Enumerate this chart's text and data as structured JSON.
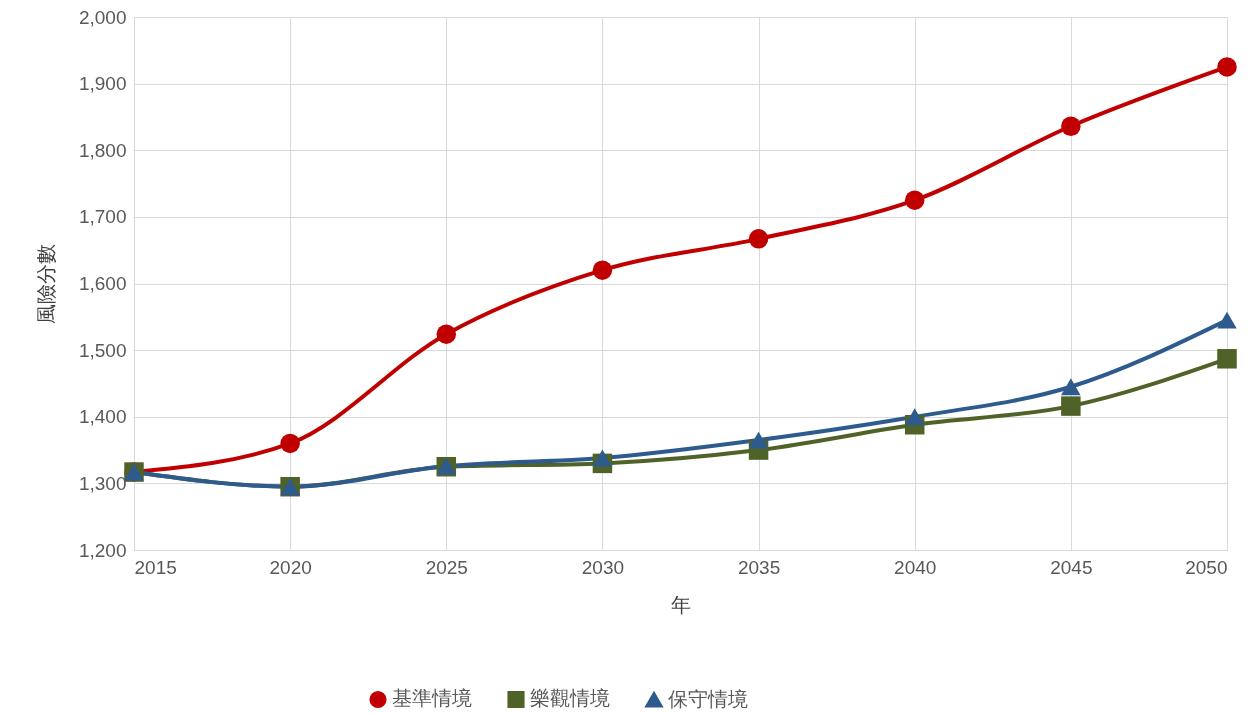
{
  "chart_data": {
    "type": "line",
    "xlabel": "年",
    "ylabel": "風險分數",
    "x": [
      2015,
      2020,
      2025,
      2030,
      2035,
      2040,
      2045,
      2050
    ],
    "series": [
      {
        "name": "基準情境",
        "color": "#c00000",
        "marker": "circle",
        "values": [
          1317,
          1360,
          1524,
          1620,
          1667,
          1725,
          1836,
          1925
        ]
      },
      {
        "name": "樂觀情境",
        "color": "#4f6228",
        "marker": "square",
        "values": [
          1317,
          1295,
          1325,
          1330,
          1350,
          1388,
          1416,
          1487
        ]
      },
      {
        "name": "保守情境",
        "color": "#2e5b8e",
        "marker": "triangle",
        "values": [
          1317,
          1295,
          1326,
          1338,
          1365,
          1400,
          1445,
          1545
        ]
      }
    ],
    "xlim": [
      2015,
      2050
    ],
    "xticks": [
      2015,
      2020,
      2025,
      2030,
      2035,
      2040,
      2045,
      2050
    ],
    "ylim": [
      1200,
      2000
    ],
    "yticks": [
      {
        "value": 1200,
        "label": "1,200"
      },
      {
        "value": 1300,
        "label": "1,300"
      },
      {
        "value": 1400,
        "label": "1,400"
      },
      {
        "value": 1500,
        "label": "1,500"
      },
      {
        "value": 1600,
        "label": "1,600"
      },
      {
        "value": 1700,
        "label": "1,700"
      },
      {
        "value": 1800,
        "label": "1,800"
      },
      {
        "value": 1900,
        "label": "1,900"
      },
      {
        "value": 2000,
        "label": "2,000"
      }
    ],
    "grid": true,
    "legend": "bottom",
    "line_style": "solid"
  }
}
